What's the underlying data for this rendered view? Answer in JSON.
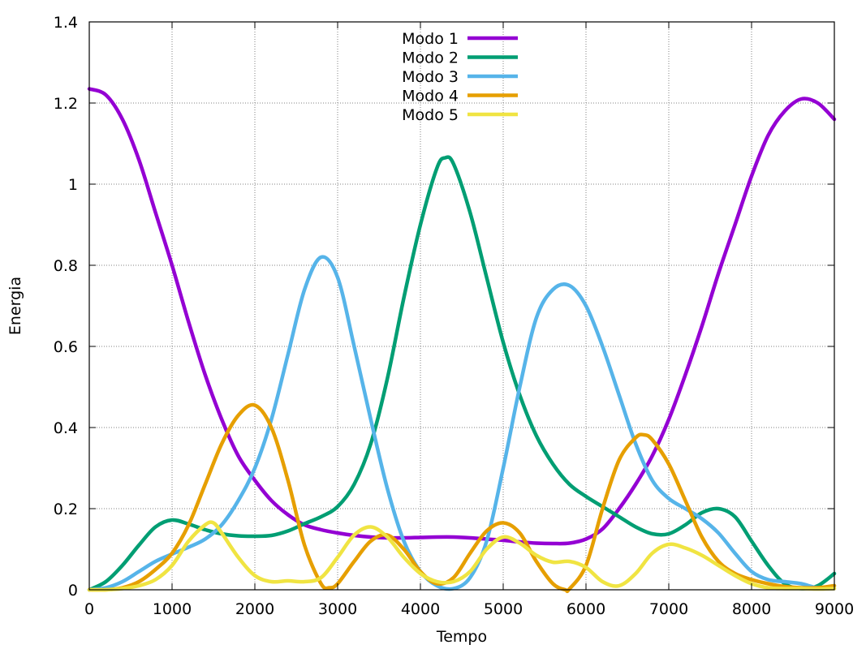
{
  "chart_data": {
    "type": "line",
    "xlabel": "Tempo",
    "ylabel": "Energia",
    "xlim": [
      0,
      9000
    ],
    "ylim": [
      0,
      1.4
    ],
    "x_ticks": [
      0,
      1000,
      2000,
      3000,
      4000,
      5000,
      6000,
      7000,
      8000,
      9000
    ],
    "y_ticks": [
      0,
      0.2,
      0.4,
      0.6,
      0.8,
      1,
      1.2,
      1.4
    ],
    "grid": true,
    "legend_position": "top-center",
    "series": [
      {
        "name": "Modo 1",
        "color": "#9400d3",
        "points": [
          [
            0,
            1.235
          ],
          [
            200,
            1.22
          ],
          [
            400,
            1.16
          ],
          [
            600,
            1.06
          ],
          [
            800,
            0.93
          ],
          [
            1000,
            0.8
          ],
          [
            1200,
            0.66
          ],
          [
            1400,
            0.53
          ],
          [
            1600,
            0.42
          ],
          [
            1800,
            0.33
          ],
          [
            2000,
            0.27
          ],
          [
            2200,
            0.22
          ],
          [
            2400,
            0.185
          ],
          [
            2600,
            0.16
          ],
          [
            2800,
            0.148
          ],
          [
            3000,
            0.14
          ],
          [
            3200,
            0.134
          ],
          [
            3400,
            0.13
          ],
          [
            3600,
            0.128
          ],
          [
            3800,
            0.128
          ],
          [
            4000,
            0.129
          ],
          [
            4200,
            0.13
          ],
          [
            4400,
            0.13
          ],
          [
            4600,
            0.128
          ],
          [
            4800,
            0.125
          ],
          [
            5000,
            0.122
          ],
          [
            5200,
            0.118
          ],
          [
            5400,
            0.115
          ],
          [
            5600,
            0.114
          ],
          [
            5800,
            0.115
          ],
          [
            6000,
            0.125
          ],
          [
            6200,
            0.15
          ],
          [
            6400,
            0.2
          ],
          [
            6600,
            0.26
          ],
          [
            6800,
            0.33
          ],
          [
            7000,
            0.42
          ],
          [
            7200,
            0.53
          ],
          [
            7400,
            0.65
          ],
          [
            7600,
            0.78
          ],
          [
            7800,
            0.9
          ],
          [
            8000,
            1.02
          ],
          [
            8200,
            1.12
          ],
          [
            8400,
            1.18
          ],
          [
            8600,
            1.21
          ],
          [
            8800,
            1.2
          ],
          [
            9000,
            1.16
          ]
        ]
      },
      {
        "name": "Modo 2",
        "color": "#009e73",
        "points": [
          [
            0,
            0.0
          ],
          [
            200,
            0.02
          ],
          [
            400,
            0.06
          ],
          [
            600,
            0.11
          ],
          [
            800,
            0.155
          ],
          [
            1000,
            0.172
          ],
          [
            1200,
            0.162
          ],
          [
            1400,
            0.148
          ],
          [
            1600,
            0.138
          ],
          [
            1800,
            0.133
          ],
          [
            2000,
            0.132
          ],
          [
            2200,
            0.134
          ],
          [
            2400,
            0.145
          ],
          [
            2600,
            0.163
          ],
          [
            2800,
            0.18
          ],
          [
            3000,
            0.205
          ],
          [
            3200,
            0.26
          ],
          [
            3400,
            0.36
          ],
          [
            3600,
            0.52
          ],
          [
            3800,
            0.72
          ],
          [
            4000,
            0.9
          ],
          [
            4200,
            1.04
          ],
          [
            4300,
            1.065
          ],
          [
            4400,
            1.05
          ],
          [
            4600,
            0.93
          ],
          [
            4800,
            0.77
          ],
          [
            5000,
            0.61
          ],
          [
            5200,
            0.48
          ],
          [
            5400,
            0.38
          ],
          [
            5600,
            0.31
          ],
          [
            5800,
            0.26
          ],
          [
            6000,
            0.23
          ],
          [
            6200,
            0.205
          ],
          [
            6400,
            0.18
          ],
          [
            6600,
            0.155
          ],
          [
            6800,
            0.138
          ],
          [
            7000,
            0.138
          ],
          [
            7200,
            0.16
          ],
          [
            7400,
            0.19
          ],
          [
            7600,
            0.2
          ],
          [
            7800,
            0.18
          ],
          [
            8000,
            0.12
          ],
          [
            8200,
            0.06
          ],
          [
            8400,
            0.015
          ],
          [
            8600,
            0.003
          ],
          [
            8800,
            0.01
          ],
          [
            9000,
            0.04
          ]
        ]
      },
      {
        "name": "Modo 3",
        "color": "#56b4e9",
        "points": [
          [
            0,
            0.0
          ],
          [
            200,
            0.005
          ],
          [
            400,
            0.02
          ],
          [
            600,
            0.045
          ],
          [
            800,
            0.07
          ],
          [
            1000,
            0.088
          ],
          [
            1200,
            0.105
          ],
          [
            1400,
            0.125
          ],
          [
            1600,
            0.16
          ],
          [
            1800,
            0.22
          ],
          [
            2000,
            0.3
          ],
          [
            2200,
            0.42
          ],
          [
            2400,
            0.58
          ],
          [
            2600,
            0.74
          ],
          [
            2800,
            0.82
          ],
          [
            3000,
            0.77
          ],
          [
            3200,
            0.6
          ],
          [
            3400,
            0.42
          ],
          [
            3600,
            0.25
          ],
          [
            3800,
            0.12
          ],
          [
            4000,
            0.045
          ],
          [
            4200,
            0.01
          ],
          [
            4400,
            0.003
          ],
          [
            4600,
            0.03
          ],
          [
            4800,
            0.12
          ],
          [
            5000,
            0.3
          ],
          [
            5200,
            0.5
          ],
          [
            5400,
            0.67
          ],
          [
            5600,
            0.74
          ],
          [
            5800,
            0.75
          ],
          [
            6000,
            0.7
          ],
          [
            6200,
            0.6
          ],
          [
            6400,
            0.48
          ],
          [
            6600,
            0.36
          ],
          [
            6800,
            0.27
          ],
          [
            7000,
            0.225
          ],
          [
            7200,
            0.2
          ],
          [
            7400,
            0.175
          ],
          [
            7600,
            0.14
          ],
          [
            7800,
            0.09
          ],
          [
            8000,
            0.045
          ],
          [
            8200,
            0.025
          ],
          [
            8400,
            0.02
          ],
          [
            8600,
            0.015
          ],
          [
            8800,
            0.005
          ],
          [
            9000,
            0.01
          ]
        ]
      },
      {
        "name": "Modo 4",
        "color": "#e69f00",
        "points": [
          [
            0,
            0.0
          ],
          [
            200,
            0.0
          ],
          [
            400,
            0.005
          ],
          [
            600,
            0.02
          ],
          [
            800,
            0.05
          ],
          [
            1000,
            0.09
          ],
          [
            1200,
            0.16
          ],
          [
            1400,
            0.26
          ],
          [
            1600,
            0.36
          ],
          [
            1800,
            0.43
          ],
          [
            2000,
            0.455
          ],
          [
            2200,
            0.4
          ],
          [
            2400,
            0.27
          ],
          [
            2600,
            0.11
          ],
          [
            2800,
            0.015
          ],
          [
            2900,
            0.005
          ],
          [
            3000,
            0.015
          ],
          [
            3200,
            0.07
          ],
          [
            3400,
            0.12
          ],
          [
            3600,
            0.135
          ],
          [
            3800,
            0.1
          ],
          [
            4000,
            0.045
          ],
          [
            4200,
            0.015
          ],
          [
            4400,
            0.03
          ],
          [
            4600,
            0.09
          ],
          [
            4800,
            0.145
          ],
          [
            5000,
            0.165
          ],
          [
            5200,
            0.14
          ],
          [
            5400,
            0.07
          ],
          [
            5600,
            0.015
          ],
          [
            5750,
            0.0
          ],
          [
            5800,
            0.002
          ],
          [
            6000,
            0.06
          ],
          [
            6200,
            0.2
          ],
          [
            6400,
            0.32
          ],
          [
            6600,
            0.375
          ],
          [
            6700,
            0.382
          ],
          [
            6800,
            0.37
          ],
          [
            7000,
            0.31
          ],
          [
            7200,
            0.22
          ],
          [
            7400,
            0.13
          ],
          [
            7600,
            0.07
          ],
          [
            7800,
            0.04
          ],
          [
            8000,
            0.025
          ],
          [
            8200,
            0.015
          ],
          [
            8400,
            0.008
          ],
          [
            8600,
            0.005
          ],
          [
            8800,
            0.005
          ],
          [
            9000,
            0.01
          ]
        ]
      },
      {
        "name": "Modo 5",
        "color": "#f0e442",
        "points": [
          [
            0,
            0.0
          ],
          [
            200,
            0.0
          ],
          [
            400,
            0.003
          ],
          [
            600,
            0.01
          ],
          [
            800,
            0.025
          ],
          [
            1000,
            0.06
          ],
          [
            1200,
            0.12
          ],
          [
            1400,
            0.16
          ],
          [
            1500,
            0.165
          ],
          [
            1600,
            0.14
          ],
          [
            1800,
            0.08
          ],
          [
            2000,
            0.035
          ],
          [
            2200,
            0.02
          ],
          [
            2400,
            0.022
          ],
          [
            2600,
            0.02
          ],
          [
            2800,
            0.03
          ],
          [
            3000,
            0.08
          ],
          [
            3200,
            0.135
          ],
          [
            3400,
            0.155
          ],
          [
            3600,
            0.13
          ],
          [
            3800,
            0.08
          ],
          [
            4000,
            0.04
          ],
          [
            4200,
            0.02
          ],
          [
            4400,
            0.02
          ],
          [
            4600,
            0.045
          ],
          [
            4800,
            0.1
          ],
          [
            5000,
            0.13
          ],
          [
            5200,
            0.115
          ],
          [
            5400,
            0.085
          ],
          [
            5600,
            0.068
          ],
          [
            5800,
            0.07
          ],
          [
            6000,
            0.055
          ],
          [
            6200,
            0.02
          ],
          [
            6400,
            0.01
          ],
          [
            6600,
            0.04
          ],
          [
            6800,
            0.09
          ],
          [
            7000,
            0.112
          ],
          [
            7200,
            0.103
          ],
          [
            7400,
            0.085
          ],
          [
            7600,
            0.06
          ],
          [
            7800,
            0.035
          ],
          [
            8000,
            0.015
          ],
          [
            8200,
            0.005
          ],
          [
            8400,
            0.003
          ],
          [
            8600,
            0.003
          ],
          [
            8800,
            0.002
          ],
          [
            9000,
            0.003
          ]
        ]
      }
    ]
  }
}
